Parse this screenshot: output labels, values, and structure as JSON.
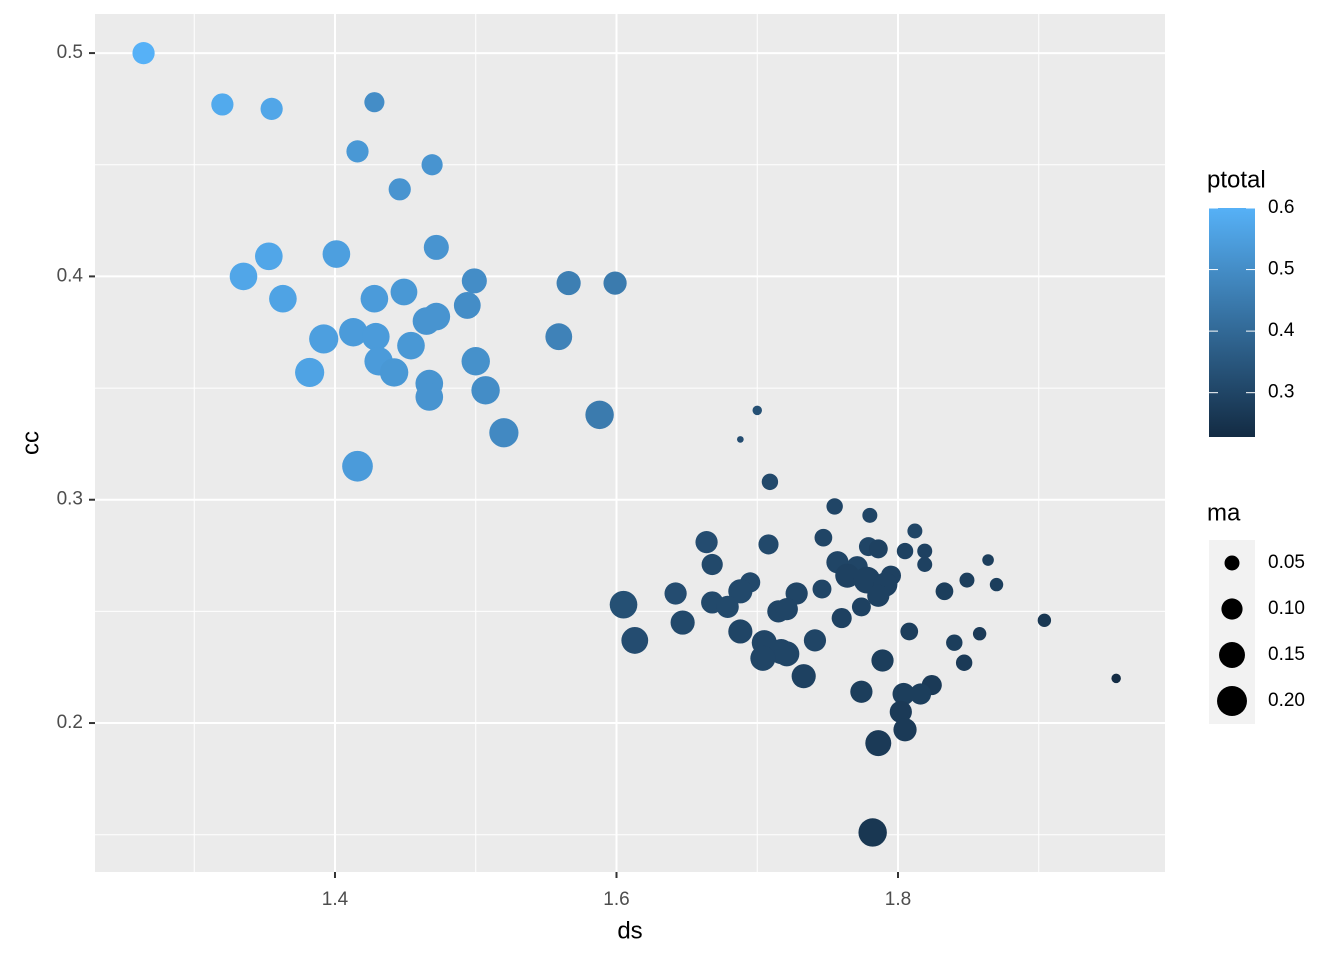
{
  "chart_data": {
    "type": "scatter",
    "x_label": "ds",
    "y_label": "cc",
    "x": [
      1.264,
      1.32,
      1.355,
      1.428,
      1.416,
      1.469,
      1.446,
      1.353,
      1.335,
      1.363,
      1.401,
      1.472,
      1.428,
      1.449,
      1.499,
      1.566,
      1.599,
      1.494,
      1.472,
      1.465,
      1.413,
      1.429,
      1.392,
      1.454,
      1.559,
      1.431,
      1.5,
      1.442,
      1.382,
      1.467,
      1.507,
      1.467,
      1.588,
      1.52,
      1.416,
      1.7,
      1.688,
      1.709,
      1.755,
      1.78,
      1.812,
      1.747,
      1.664,
      1.708,
      1.779,
      1.786,
      1.805,
      1.819,
      1.864,
      1.668,
      1.757,
      1.771,
      1.819,
      1.795,
      1.764,
      1.778,
      1.849,
      1.695,
      1.87,
      1.791,
      1.688,
      1.746,
      1.833,
      1.642,
      1.786,
      1.728,
      1.668,
      1.605,
      1.679,
      1.774,
      1.715,
      1.721,
      1.76,
      1.904,
      1.647,
      1.688,
      1.808,
      1.858,
      1.613,
      1.741,
      1.705,
      1.84,
      1.717,
      1.721,
      1.704,
      1.789,
      1.847,
      1.733,
      1.824,
      1.955,
      1.774,
      1.804,
      1.816,
      1.802,
      1.805,
      1.786,
      1.782
    ],
    "values": [
      0.5,
      0.477,
      0.475,
      0.478,
      0.456,
      0.45,
      0.439,
      0.409,
      0.4,
      0.39,
      0.41,
      0.413,
      0.39,
      0.393,
      0.398,
      0.397,
      0.397,
      0.387,
      0.382,
      0.38,
      0.375,
      0.373,
      0.372,
      0.369,
      0.373,
      0.362,
      0.362,
      0.357,
      0.357,
      0.352,
      0.349,
      0.346,
      0.338,
      0.33,
      0.315,
      0.34,
      0.327,
      0.308,
      0.297,
      0.293,
      0.286,
      0.283,
      0.281,
      0.28,
      0.279,
      0.278,
      0.277,
      0.277,
      0.273,
      0.271,
      0.272,
      0.27,
      0.271,
      0.266,
      0.266,
      0.264,
      0.264,
      0.263,
      0.262,
      0.262,
      0.259,
      0.26,
      0.259,
      0.258,
      0.257,
      0.258,
      0.254,
      0.253,
      0.252,
      0.252,
      0.25,
      0.251,
      0.247,
      0.246,
      0.245,
      0.241,
      0.241,
      0.24,
      0.237,
      0.237,
      0.236,
      0.236,
      0.232,
      0.231,
      0.229,
      0.228,
      0.227,
      0.221,
      0.217,
      0.22,
      0.214,
      0.213,
      0.213,
      0.205,
      0.197,
      0.191,
      0.151
    ],
    "size": {
      "name": "ma",
      "values": [
        0.11,
        0.11,
        0.11,
        0.09,
        0.11,
        0.1,
        0.11,
        0.17,
        0.17,
        0.17,
        0.17,
        0.14,
        0.17,
        0.16,
        0.14,
        0.13,
        0.12,
        0.16,
        0.17,
        0.17,
        0.18,
        0.17,
        0.19,
        0.17,
        0.16,
        0.18,
        0.18,
        0.18,
        0.19,
        0.17,
        0.18,
        0.17,
        0.18,
        0.19,
        0.21,
        0.02,
        0.01,
        0.06,
        0.06,
        0.05,
        0.05,
        0.07,
        0.11,
        0.09,
        0.08,
        0.08,
        0.06,
        0.05,
        0.03,
        0.1,
        0.11,
        0.1,
        0.05,
        0.09,
        0.13,
        0.16,
        0.05,
        0.09,
        0.04,
        0.13,
        0.13,
        0.08,
        0.07,
        0.11,
        0.11,
        0.11,
        0.11,
        0.17,
        0.11,
        0.08,
        0.11,
        0.11,
        0.09,
        0.04,
        0.13,
        0.13,
        0.07,
        0.04,
        0.16,
        0.11,
        0.14,
        0.06,
        0.14,
        0.14,
        0.14,
        0.11,
        0.06,
        0.13,
        0.09,
        0.02,
        0.11,
        0.11,
        0.1,
        0.11,
        0.12,
        0.15,
        0.18
      ],
      "ticks": [
        0.05,
        {
          "value": 0.1,
          "label": "0.10"
        },
        0.15,
        {
          "value": 0.2,
          "label": "0.20"
        }
      ]
    },
    "color": {
      "name": "ptotal",
      "low": "#132B43",
      "high": "#56B1F7",
      "lim": [
        0.228,
        0.6
      ],
      "ticks": [
        0.3,
        0.4,
        0.5,
        0.6
      ],
      "values": [
        0.6,
        0.58,
        0.57,
        0.5,
        0.53,
        0.52,
        0.52,
        0.57,
        0.57,
        0.56,
        0.55,
        0.52,
        0.54,
        0.53,
        0.5,
        0.46,
        0.45,
        0.5,
        0.52,
        0.52,
        0.54,
        0.54,
        0.55,
        0.53,
        0.47,
        0.54,
        0.51,
        0.53,
        0.56,
        0.52,
        0.5,
        0.52,
        0.45,
        0.49,
        0.54,
        0.33,
        0.32,
        0.31,
        0.3,
        0.3,
        0.3,
        0.3,
        0.32,
        0.31,
        0.3,
        0.29,
        0.29,
        0.29,
        0.28,
        0.31,
        0.3,
        0.3,
        0.29,
        0.29,
        0.29,
        0.29,
        0.28,
        0.31,
        0.28,
        0.29,
        0.31,
        0.3,
        0.28,
        0.32,
        0.29,
        0.3,
        0.31,
        0.33,
        0.31,
        0.29,
        0.3,
        0.3,
        0.29,
        0.26,
        0.31,
        0.3,
        0.28,
        0.27,
        0.32,
        0.3,
        0.3,
        0.28,
        0.3,
        0.3,
        0.3,
        0.28,
        0.27,
        0.29,
        0.27,
        0.23,
        0.28,
        0.28,
        0.28,
        0.27,
        0.27,
        0.27,
        0.26
      ]
    },
    "xlim": [
      1.2295,
      1.9897
    ],
    "ylim": [
      0.1333,
      0.5175
    ],
    "xticks": [
      1.4,
      1.6,
      1.8
    ],
    "yticks": [
      0.2,
      0.3,
      0.4,
      0.5
    ],
    "grid": true,
    "minor_grid": true
  }
}
